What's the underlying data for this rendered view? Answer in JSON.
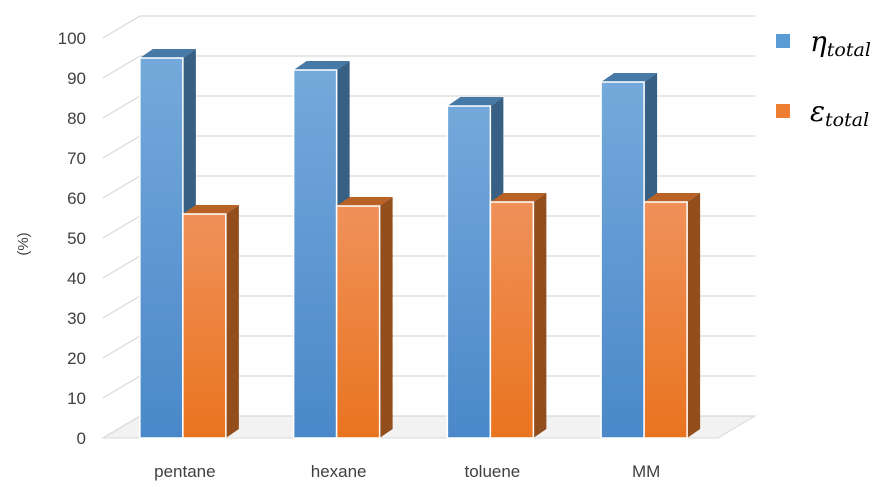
{
  "chart_data": {
    "type": "bar",
    "categories": [
      "pentane",
      "hexane",
      "toluene",
      "MM"
    ],
    "series": [
      {
        "name": "η",
        "name_sub": "total",
        "color": "#5b9bd5",
        "values": [
          95,
          92,
          83,
          89
        ]
      },
      {
        "name": "ε",
        "name_sub": "total",
        "color": "#ed7d31",
        "values": [
          56,
          58,
          59,
          59
        ]
      }
    ],
    "title": "",
    "xlabel": "",
    "ylabel": "(%)",
    "ylim": [
      0,
      100
    ],
    "yticks": [
      "0",
      "10",
      "20",
      "30",
      "40",
      "50",
      "60",
      "70",
      "80",
      "90",
      "100"
    ],
    "grid": true,
    "legend_position": "right",
    "style": "3d-column"
  }
}
